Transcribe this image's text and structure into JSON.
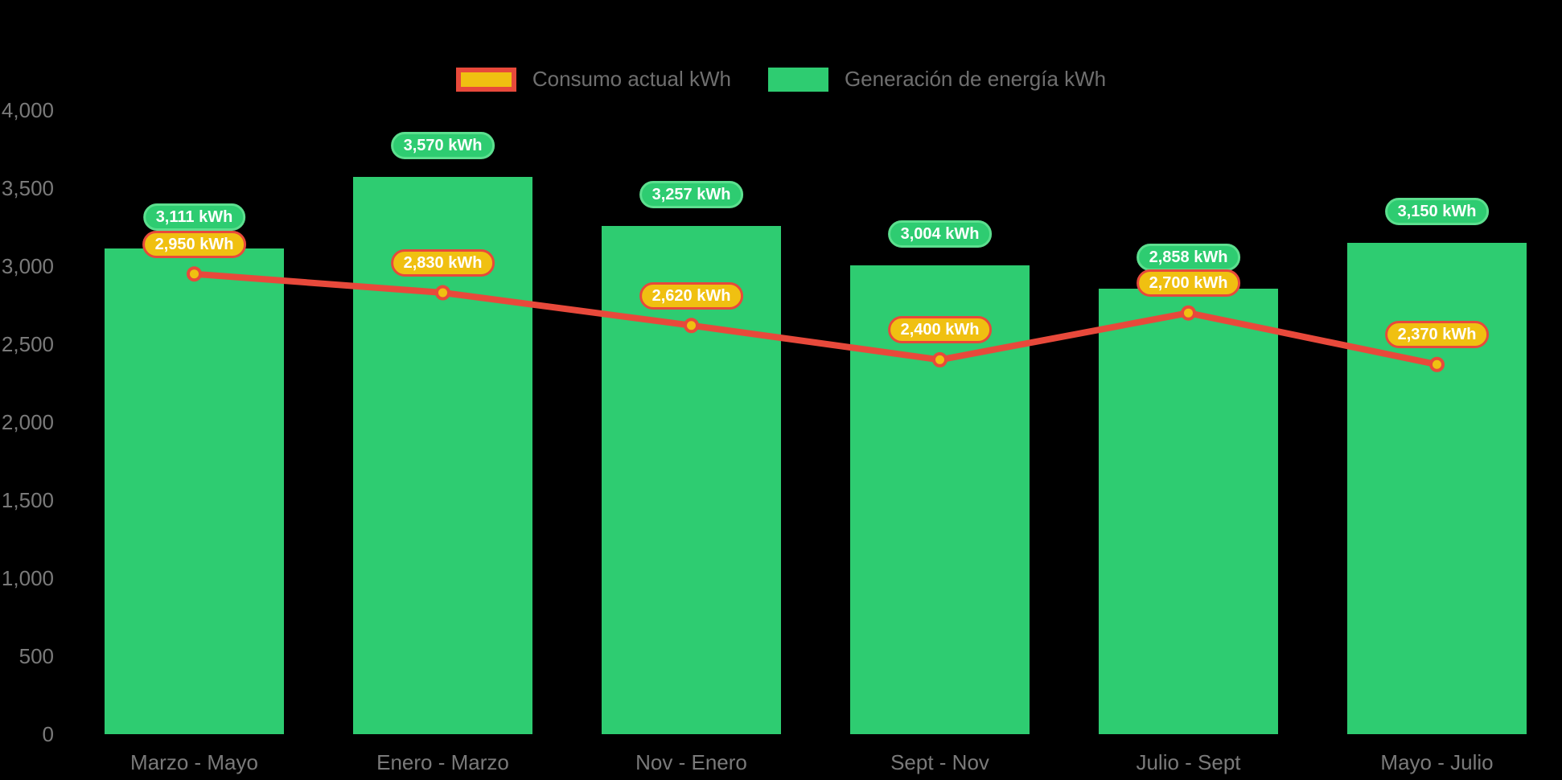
{
  "background": "#000000",
  "legend": {
    "items": [
      {
        "label": "Consumo actual kWh",
        "swatch_fill": "#F0C011",
        "swatch_border": "#E8493B"
      },
      {
        "label": "Generación de energía kWh",
        "swatch_fill": "#2ECC71",
        "swatch_border": "#2ECC71"
      }
    ],
    "text_color": "#6F6F6F"
  },
  "chart_data": {
    "type": "bar",
    "categories": [
      "Marzo - Mayo",
      "Enero - Marzo",
      "Nov - Enero",
      "Sept - Nov",
      "Julio - Sept",
      "Mayo - Julio"
    ],
    "series": [
      {
        "name": "Generación de energía kWh",
        "type": "bar",
        "color": "#2ECC71",
        "values": [
          3111,
          3570,
          3257,
          3004,
          2858,
          3150
        ],
        "point_labels": [
          "3,111 kWh",
          "3,570 kWh",
          "3,257 kWh",
          "3,004 kWh",
          "2,858 kWh",
          "3,150 kWh"
        ],
        "label_bg": "#2ECC71",
        "label_border": "#5CDF8E",
        "label_text_color": "#FFFFFF"
      },
      {
        "name": "Consumo actual kWh",
        "type": "line",
        "color": "#E8493B",
        "marker_fill": "#F0C011",
        "marker_border": "#E8493B",
        "values": [
          2950,
          2830,
          2620,
          2400,
          2700,
          2370
        ],
        "point_labels": [
          "2,950 kWh",
          "2,830 kWh",
          "2,620 kWh",
          "2,400 kWh",
          "2,700 kWh",
          "2,370 kWh"
        ],
        "label_bg": "#F0C011",
        "label_border": "#E8493B",
        "label_text_color": "#FFFFFF"
      }
    ],
    "ylim": [
      0,
      4000
    ],
    "yticks": [
      {
        "value": 4000,
        "label": "4,000"
      },
      {
        "value": 3500,
        "label": "3,500"
      },
      {
        "value": 3000,
        "label": "3,000"
      },
      {
        "value": 2500,
        "label": "2,500"
      },
      {
        "value": 2000,
        "label": "2,000"
      },
      {
        "value": 1500,
        "label": "1,500"
      },
      {
        "value": 1000,
        "label": "1,000"
      },
      {
        "value": 500,
        "label": "500"
      },
      {
        "value": 0,
        "label": "0"
      }
    ],
    "grid": false,
    "legend_position": "top-center",
    "axis_text_color": "#7A7A7A"
  }
}
